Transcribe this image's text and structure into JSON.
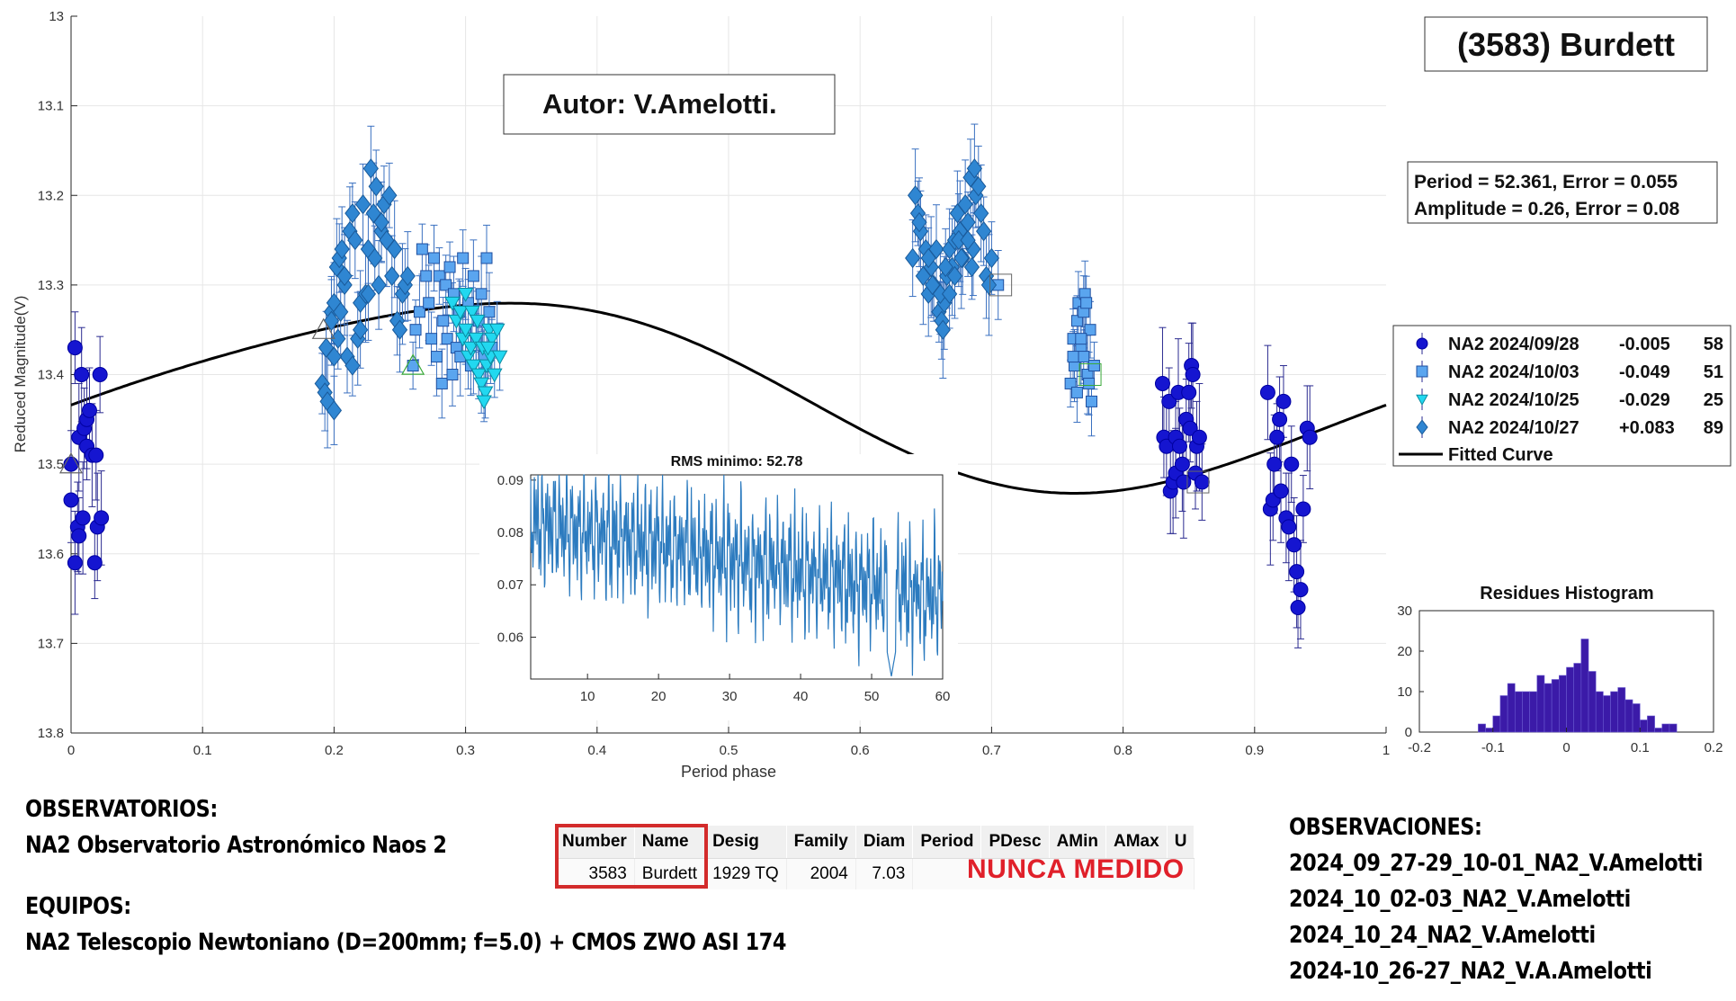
{
  "chart_data": [
    {
      "type": "scatter",
      "title": "(3583) Burdett",
      "xlabel": "Period phase",
      "ylabel": "Reduced Magnitude(V)",
      "xlim": [
        0,
        1
      ],
      "ylim": [
        13.0,
        13.8
      ],
      "y_reversed": true,
      "grid": true,
      "legend_placement": "right",
      "x_ticks": [
        "0",
        "0.1",
        "0.2",
        "0.3",
        "0.4",
        "0.5",
        "0.6",
        "0.7",
        "0.8",
        "0.9",
        "1"
      ],
      "y_ticks": [
        "13",
        "13.1",
        "13.2",
        "13.3",
        "13.4",
        "13.5",
        "13.6",
        "13.7",
        "13.8"
      ],
      "author_label": "Autor: V.Amelotti.",
      "fit_box": [
        "Period =  52.361, Error = 0.055",
        "Amplitude = 0.26, Error = 0.08"
      ],
      "fitted_curve": {
        "name": "Fitted Curve",
        "mean": 13.42,
        "a1": 0.026,
        "b1": -0.1,
        "a2": -0.012,
        "b2": 0.007
      },
      "series": [
        {
          "name": "NA2 2024/09/28",
          "offset": "-0.005",
          "count": "58",
          "marker": "circle",
          "color": "#1515d0",
          "x": [
            0.0,
            0.0,
            0.003,
            0.003,
            0.005,
            0.006,
            0.006,
            0.008,
            0.009,
            0.01,
            0.012,
            0.012,
            0.014,
            0.016,
            0.018,
            0.019,
            0.02,
            0.022,
            0.023,
            0.83,
            0.831,
            0.833,
            0.835,
            0.836,
            0.838,
            0.84,
            0.84,
            0.842,
            0.843,
            0.845,
            0.846,
            0.848,
            0.85,
            0.851,
            0.852,
            0.853,
            0.855,
            0.856,
            0.858,
            0.86,
            0.91,
            0.912,
            0.914,
            0.915,
            0.917,
            0.919,
            0.92,
            0.922,
            0.924,
            0.926,
            0.928,
            0.93,
            0.932,
            0.933,
            0.935,
            0.937,
            0.94,
            0.942
          ],
          "y": [
            13.5,
            13.54,
            13.61,
            13.37,
            13.57,
            13.47,
            13.58,
            13.4,
            13.56,
            13.46,
            13.45,
            13.48,
            13.44,
            13.49,
            13.61,
            13.49,
            13.57,
            13.4,
            13.56,
            13.41,
            13.47,
            13.48,
            13.43,
            13.53,
            13.52,
            13.47,
            13.51,
            13.42,
            13.48,
            13.5,
            13.52,
            13.45,
            13.42,
            13.46,
            13.39,
            13.4,
            13.51,
            13.48,
            13.47,
            13.52,
            13.42,
            13.55,
            13.54,
            13.5,
            13.47,
            13.45,
            13.53,
            13.43,
            13.56,
            13.57,
            13.5,
            13.59,
            13.62,
            13.66,
            13.64,
            13.55,
            13.46,
            13.47
          ]
        },
        {
          "name": "NA2 2024/10/03",
          "offset": "-0.049",
          "count": "51",
          "marker": "square",
          "color": "#5aa5ef",
          "x": [
            0.26,
            0.262,
            0.265,
            0.267,
            0.27,
            0.272,
            0.274,
            0.276,
            0.278,
            0.28,
            0.282,
            0.283,
            0.285,
            0.286,
            0.288,
            0.29,
            0.291,
            0.293,
            0.295,
            0.296,
            0.298,
            0.3,
            0.302,
            0.304,
            0.306,
            0.308,
            0.31,
            0.312,
            0.314,
            0.316,
            0.318,
            0.32,
            0.705,
            0.76,
            0.762,
            0.763,
            0.765,
            0.766,
            0.768,
            0.77,
            0.771,
            0.773,
            0.775,
            0.776,
            0.778,
            0.765,
            0.77,
            0.762,
            0.774,
            0.768,
            0.772
          ],
          "y": [
            13.39,
            13.35,
            13.33,
            13.26,
            13.29,
            13.32,
            13.36,
            13.27,
            13.38,
            13.29,
            13.41,
            13.34,
            13.3,
            13.36,
            13.28,
            13.4,
            13.31,
            13.37,
            13.33,
            13.38,
            13.27,
            13.35,
            13.32,
            13.39,
            13.29,
            13.36,
            13.34,
            13.31,
            13.38,
            13.27,
            13.33,
            13.37,
            13.3,
            13.41,
            13.36,
            13.39,
            13.34,
            13.32,
            13.37,
            13.38,
            13.31,
            13.4,
            13.35,
            13.43,
            13.39,
            13.42,
            13.33,
            13.38,
            13.41,
            13.36,
            13.32
          ]
        },
        {
          "name": "NA2 2024/10/25",
          "offset": "-0.029",
          "count": "25",
          "marker": "triangle-down",
          "color": "#22d8f0",
          "x": [
            0.29,
            0.293,
            0.296,
            0.298,
            0.3,
            0.302,
            0.304,
            0.306,
            0.308,
            0.31,
            0.312,
            0.313,
            0.315,
            0.316,
            0.318,
            0.319,
            0.32,
            0.322,
            0.324,
            0.326,
            0.305,
            0.309,
            0.314,
            0.3,
            0.317
          ],
          "y": [
            13.32,
            13.34,
            13.33,
            13.36,
            13.35,
            13.38,
            13.37,
            13.39,
            13.36,
            13.4,
            13.41,
            13.37,
            13.42,
            13.39,
            13.35,
            13.38,
            13.36,
            13.4,
            13.35,
            13.38,
            13.33,
            13.34,
            13.43,
            13.31,
            13.37
          ]
        },
        {
          "name": "NA2 2024/10/27",
          "offset": "+0.083",
          "count": "89",
          "marker": "diamond",
          "color": "#2f86d2",
          "x": [
            0.191,
            0.193,
            0.195,
            0.198,
            0.2,
            0.202,
            0.204,
            0.206,
            0.208,
            0.21,
            0.212,
            0.214,
            0.216,
            0.218,
            0.22,
            0.222,
            0.224,
            0.226,
            0.228,
            0.23,
            0.232,
            0.234,
            0.236,
            0.238,
            0.24,
            0.242,
            0.244,
            0.246,
            0.248,
            0.25,
            0.252,
            0.254,
            0.256,
            0.214,
            0.22,
            0.226,
            0.231,
            0.236,
            0.208,
            0.2,
            0.205,
            0.2,
            0.194,
            0.198,
            0.203,
            0.64,
            0.642,
            0.644,
            0.646,
            0.648,
            0.65,
            0.652,
            0.654,
            0.656,
            0.658,
            0.66,
            0.662,
            0.664,
            0.666,
            0.668,
            0.67,
            0.672,
            0.674,
            0.676,
            0.678,
            0.68,
            0.682,
            0.684,
            0.686,
            0.688,
            0.69,
            0.692,
            0.694,
            0.696,
            0.698,
            0.7,
            0.645,
            0.655,
            0.665,
            0.675,
            0.685,
            0.661,
            0.663,
            0.668,
            0.672,
            0.677,
            0.682,
            0.687,
            0.652
          ],
          "y": [
            13.41,
            13.42,
            13.43,
            13.33,
            13.32,
            13.28,
            13.27,
            13.26,
            13.3,
            13.38,
            13.24,
            13.22,
            13.25,
            13.36,
            13.32,
            13.21,
            13.31,
            13.26,
            13.17,
            13.22,
            13.19,
            13.3,
            13.24,
            13.21,
            13.25,
            13.2,
            13.29,
            13.26,
            13.34,
            13.35,
            13.31,
            13.3,
            13.29,
            13.39,
            13.35,
            13.31,
            13.27,
            13.23,
            13.29,
            13.44,
            13.33,
            13.38,
            13.37,
            13.34,
            13.36,
            13.27,
            13.2,
            13.22,
            13.24,
            13.29,
            13.26,
            13.31,
            13.28,
            13.3,
            13.26,
            13.33,
            13.34,
            13.32,
            13.29,
            13.26,
            13.28,
            13.25,
            13.22,
            13.24,
            13.27,
            13.21,
            13.23,
            13.18,
            13.26,
            13.2,
            13.19,
            13.22,
            13.24,
            13.29,
            13.3,
            13.27,
            13.23,
            13.3,
            13.28,
            13.25,
            13.28,
            13.31,
            13.35,
            13.31,
            13.29,
            13.27,
            13.25,
            13.17,
            13.27
          ]
        }
      ],
      "hollow_markers": [
        {
          "marker": "triangle-up",
          "color": "#666666",
          "x": [
            0.0,
            0.192
          ],
          "y": [
            13.5,
            13.35
          ]
        },
        {
          "marker": "triangle-up",
          "color": "#3aaa3a",
          "x": [
            0.26
          ],
          "y": [
            13.39
          ]
        },
        {
          "marker": "square",
          "color": "#666666",
          "x": [
            0.707,
            0.857
          ],
          "y": [
            13.3,
            13.52
          ]
        },
        {
          "marker": "square",
          "color": "#3aaa3a",
          "x": [
            0.775
          ],
          "y": [
            13.4
          ]
        }
      ]
    },
    {
      "type": "line",
      "title": "RMS minimo: 52.78",
      "xlim": [
        2,
        60
      ],
      "ylim": [
        0.052,
        0.091
      ],
      "x_ticks": [
        "10",
        "20",
        "30",
        "40",
        "50",
        "60"
      ],
      "y_ticks": [
        "0.06",
        "0.07",
        "0.08",
        "0.09"
      ],
      "color": "#2c7bbf",
      "minimum": {
        "x": 52.78,
        "y": 0.0525
      }
    },
    {
      "type": "bar",
      "title": "Residues Histogram",
      "xlim": [
        -0.2,
        0.2
      ],
      "ylim": [
        0,
        30
      ],
      "x_ticks": [
        "-0.2",
        "-0.1",
        "0",
        "0.1",
        "0.2"
      ],
      "y_ticks": [
        "0",
        "10",
        "20",
        "30"
      ],
      "bin_edges_start": -0.12,
      "bin_width": 0.01,
      "values": [
        2,
        1,
        4,
        9,
        12,
        10,
        10,
        10,
        14,
        12,
        13,
        14,
        16,
        17,
        23,
        15,
        10,
        9,
        10,
        11,
        8,
        7,
        3,
        4,
        1,
        2,
        2
      ],
      "color": "#3b1aa8"
    }
  ],
  "table": {
    "headers": [
      "Number",
      "Name",
      "Desig",
      "Family",
      "Diam",
      "Period",
      "PDesc",
      "AMin",
      "AMax",
      "U"
    ],
    "row": [
      "3583",
      "Burdett",
      "1929 TQ",
      "2004",
      "7.03"
    ],
    "never_measured": "NUNCA MEDIDO"
  },
  "left_info": {
    "obs_title": "OBSERVATORIOS:",
    "obs_line": "NA2 Observatorio Astronómico Naos 2",
    "eq_title": "EQUIPOS:",
    "eq_line": "NA2 Telescopio Newtoniano (D=200mm; f=5.0) + CMOS ZWO ASI 174"
  },
  "right_info": {
    "title": "OBSERVACIONES:",
    "lines": [
      "2024_09_27-29_10-01_NA2_V.Amelotti",
      "2024_10_02-03_NA2_V.Amelotti",
      "2024_10_24_NA2_V.Amelotti",
      "2024-10_26-27_NA2_V.A.Amelotti"
    ]
  }
}
